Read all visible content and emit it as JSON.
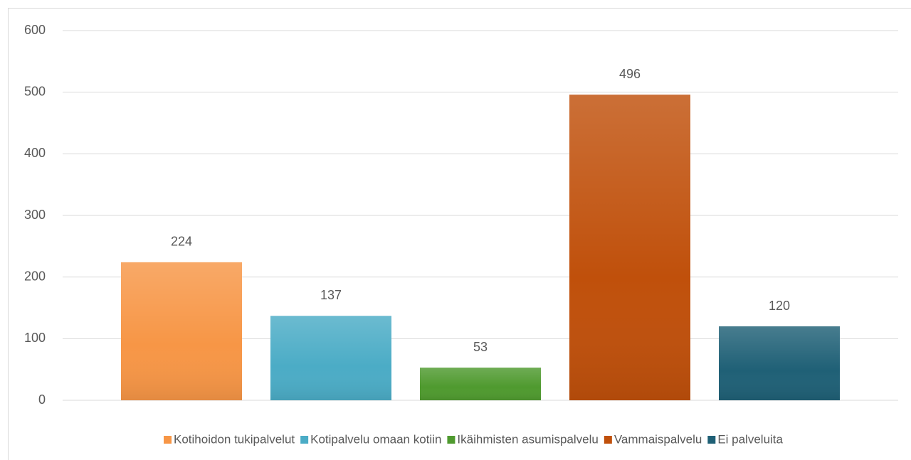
{
  "chart_data": {
    "type": "bar",
    "categories": [
      null
    ],
    "series": [
      {
        "name": "Kotihoidon tukipalvelut",
        "color": "#f79646",
        "values": [
          224
        ]
      },
      {
        "name": "Kotipalvelu omaan kotiin",
        "color": "#4bacc6",
        "values": [
          137
        ]
      },
      {
        "name": "Ikäihmisten asumispalvelu",
        "color": "#4f9a2f",
        "values": [
          53
        ]
      },
      {
        "name": "Vammaispalvelu",
        "color": "#c0500b",
        "values": [
          496
        ]
      },
      {
        "name": "Ei palveluita",
        "color": "#1f6076",
        "values": [
          120
        ]
      }
    ],
    "ylim": [
      0,
      600
    ],
    "yticks": [
      0,
      100,
      200,
      300,
      400,
      500,
      600
    ],
    "grid": true,
    "legend": "bottom"
  }
}
